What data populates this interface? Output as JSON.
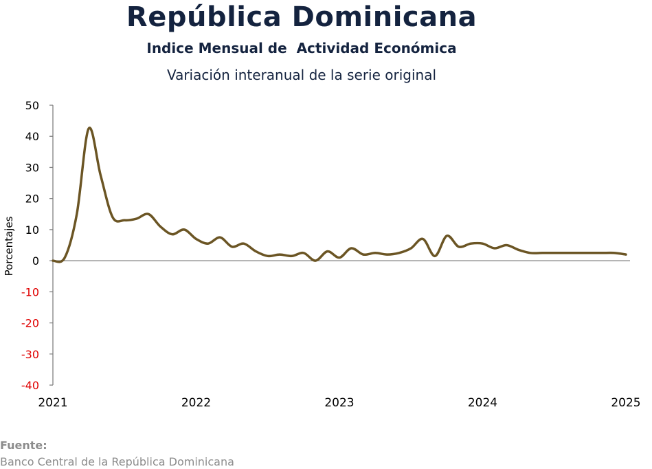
{
  "header": {
    "title": "República Dominicana",
    "subtitle": "Indice Mensual de  Actividad Económica",
    "caption": "Variación interanual de la serie original"
  },
  "footer": {
    "source_label": "Fuente:",
    "source_text": "Banco Central de la República Dominicana"
  },
  "colors": {
    "line": "#6b5524",
    "axis": "#7f7f7f",
    "text": "#000000",
    "negative_tick": "#e00000",
    "title": "#14233f"
  },
  "chart_data": {
    "type": "line",
    "ylabel": "Porcentajes",
    "xlabel": "",
    "xlim": [
      2021,
      2025
    ],
    "ylim": [
      -40,
      50
    ],
    "y_ticks": [
      50,
      40,
      30,
      20,
      10,
      0,
      -10,
      -20,
      -30,
      -40
    ],
    "x_ticks": [
      "2021",
      "2022",
      "2023",
      "2024",
      "2025"
    ],
    "grid": false,
    "legend": "none",
    "series": [
      {
        "x": [
          2021.0,
          2021.083,
          2021.167,
          2021.25,
          2021.333,
          2021.417,
          2021.5,
          2021.583,
          2021.667,
          2021.75,
          2021.833,
          2021.917,
          2022.0,
          2022.083,
          2022.167,
          2022.25,
          2022.333,
          2022.417,
          2022.5,
          2022.583,
          2022.667,
          2022.75,
          2022.833,
          2022.917,
          2023.0,
          2023.083,
          2023.167,
          2023.25,
          2023.333,
          2023.417,
          2023.5,
          2023.583,
          2023.667,
          2023.75,
          2023.833,
          2023.917,
          2024.0,
          2024.083,
          2024.167,
          2024.25,
          2024.333,
          2024.417,
          2024.5,
          2024.583,
          2024.667,
          2024.75,
          2024.833,
          2024.917,
          2025.0
        ],
        "values": [
          0.0,
          1.0,
          15.0,
          42.5,
          27.5,
          14.0,
          13.0,
          13.5,
          15.0,
          11.0,
          8.5,
          10.0,
          7.0,
          5.5,
          7.5,
          4.5,
          5.5,
          3.0,
          1.5,
          2.0,
          1.5,
          2.5,
          0.0,
          3.0,
          1.0,
          4.0,
          2.0,
          2.5,
          2.0,
          2.5,
          4.0,
          7.0,
          1.5,
          8.0,
          4.5,
          5.5,
          5.5,
          4.0,
          5.0,
          3.5,
          2.5,
          2.5,
          2.5,
          2.5,
          2.5,
          2.5,
          2.5,
          2.5,
          2.0
        ]
      }
    ]
  }
}
